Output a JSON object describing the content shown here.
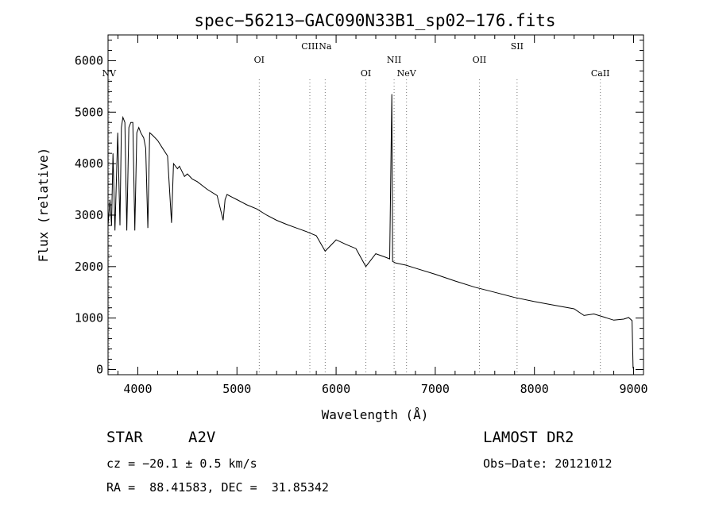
{
  "chart_data": {
    "type": "line",
    "title": "spec−56213−GAC090N33B1_sp02−176.fits",
    "xlabel": "Wavelength (Å)",
    "ylabel": "Flux (relative)",
    "xlim": [
      3700,
      9100
    ],
    "ylim": [
      -100,
      6500
    ],
    "xticks": [
      4000,
      5000,
      6000,
      7000,
      8000,
      9000
    ],
    "yticks": [
      0,
      1000,
      2000,
      3000,
      4000,
      5000,
      6000
    ],
    "grid": false,
    "series": [
      {
        "x": [
          3700,
          3720,
          3735,
          3750,
          3770,
          3798,
          3820,
          3835,
          3850,
          3870,
          3889,
          3910,
          3930,
          3950,
          3970,
          3990,
          4010,
          4030,
          4060,
          4080,
          4101,
          4120,
          4150,
          4200,
          4250,
          4300,
          4340,
          4360,
          4400,
          4420,
          4471,
          4500,
          4550,
          4600,
          4700,
          4800,
          4861,
          4880,
          4900,
          4950,
          5000,
          5100,
          5200,
          5300,
          5400,
          5500,
          5600,
          5700,
          5800,
          5890,
          6000,
          6100,
          6200,
          6300,
          6400,
          6500,
          6540,
          6562,
          6570,
          6600,
          6700,
          6800,
          7000,
          7200,
          7400,
          7600,
          7800,
          8000,
          8200,
          8400,
          8500,
          8600,
          8700,
          8800,
          8900,
          8950,
          8985,
          8995
        ],
        "y": [
          2800,
          3300,
          2800,
          4200,
          2700,
          4600,
          2800,
          4700,
          4900,
          4800,
          2700,
          4700,
          4800,
          4800,
          2700,
          4600,
          4700,
          4600,
          4500,
          4300,
          2750,
          4600,
          4550,
          4450,
          4300,
          4150,
          2850,
          4000,
          3900,
          3950,
          3750,
          3800,
          3700,
          3650,
          3500,
          3380,
          2900,
          3300,
          3400,
          3350,
          3300,
          3200,
          3120,
          3000,
          2900,
          2820,
          2750,
          2680,
          2600,
          2300,
          2520,
          2430,
          2350,
          2000,
          2250,
          2180,
          2150,
          5350,
          2100,
          2070,
          2030,
          1970,
          1850,
          1720,
          1600,
          1500,
          1400,
          1320,
          1250,
          1180,
          1050,
          1080,
          1020,
          960,
          980,
          1010,
          950,
          20
        ]
      }
    ],
    "lines": [
      {
        "label": "NV",
        "x": 3710,
        "row": "low"
      },
      {
        "label": "OI",
        "x": 5225,
        "row": "mid"
      },
      {
        "label": "CIII",
        "x": 5735,
        "row": "high"
      },
      {
        "label": "Na",
        "x": 5890,
        "row": "high"
      },
      {
        "label": "OI",
        "x": 6300,
        "row": "low"
      },
      {
        "label": "NII",
        "x": 6585,
        "row": "mid"
      },
      {
        "label": "NeV",
        "x": 6710,
        "row": "low"
      },
      {
        "label": "OII",
        "x": 7445,
        "row": "mid"
      },
      {
        "label": "SII",
        "x": 7825,
        "row": "high"
      },
      {
        "label": "CaII",
        "x": 8665,
        "row": "low"
      }
    ]
  },
  "info": {
    "class": "STAR",
    "subclass": "A2V",
    "survey": "LAMOST DR2",
    "cz": "cz = −20.1 ± 0.5 km/s",
    "obsdate": "Obs−Date: 20121012",
    "radec": "RA =  88.41583, DEC =  31.85342"
  }
}
